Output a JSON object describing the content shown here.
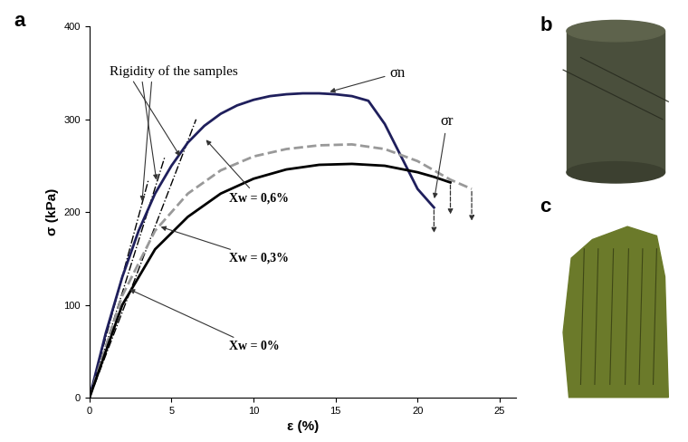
{
  "chart_data": {
    "type": "line",
    "x_label": "ε (%)",
    "y_label": "σ (kPa)",
    "xlim": [
      0,
      26
    ],
    "ylim": [
      0,
      400
    ],
    "xticks": [
      0,
      5,
      10,
      15,
      20,
      25
    ],
    "yticks": [
      0,
      100,
      200,
      300,
      400
    ],
    "grid": false,
    "series": [
      {
        "name": "Xw = 0,6%",
        "color": "#1f1f5c",
        "line_style": "solid",
        "x": [
          0,
          1,
          2,
          3,
          4,
          5,
          6,
          7,
          8,
          9,
          10,
          11,
          12,
          13,
          14,
          15,
          16,
          17,
          18,
          19,
          20,
          21
        ],
        "values": [
          0,
          70,
          130,
          180,
          220,
          250,
          275,
          293,
          306,
          315,
          321,
          325,
          327,
          328,
          328,
          327,
          325,
          320,
          295,
          260,
          225,
          205
        ],
        "drop_to": 175
      },
      {
        "name": "Xw = 0,3%",
        "color": "#999999",
        "line_style": "dashed",
        "x": [
          0,
          2,
          4,
          6,
          8,
          10,
          12,
          14,
          16,
          18,
          20,
          22,
          23.3
        ],
        "values": [
          0,
          110,
          180,
          220,
          245,
          260,
          268,
          272,
          273,
          268,
          255,
          235,
          225
        ],
        "drop_to": 188
      },
      {
        "name": "Xw = 0%",
        "color": "#000000",
        "line_style": "solid",
        "x": [
          0,
          2,
          4,
          6,
          8,
          10,
          12,
          14,
          16,
          18,
          20,
          21,
          22
        ],
        "values": [
          0,
          100,
          160,
          195,
          220,
          236,
          246,
          251,
          252,
          250,
          243,
          238,
          232
        ],
        "drop_to": 195
      }
    ],
    "rigidity": {
      "label": "Rigidity of the samples",
      "color": "#000000",
      "line_style": "dashdot",
      "lines": [
        {
          "x": [
            0,
            6.5
          ],
          "values": [
            0,
            300
          ]
        },
        {
          "x": [
            0,
            4.6
          ],
          "values": [
            0,
            260
          ]
        },
        {
          "x": [
            0,
            3.6
          ],
          "values": [
            0,
            235
          ]
        }
      ]
    },
    "annotations": [
      "σn",
      "σr"
    ]
  },
  "panels": [
    "a",
    "b",
    "c"
  ]
}
